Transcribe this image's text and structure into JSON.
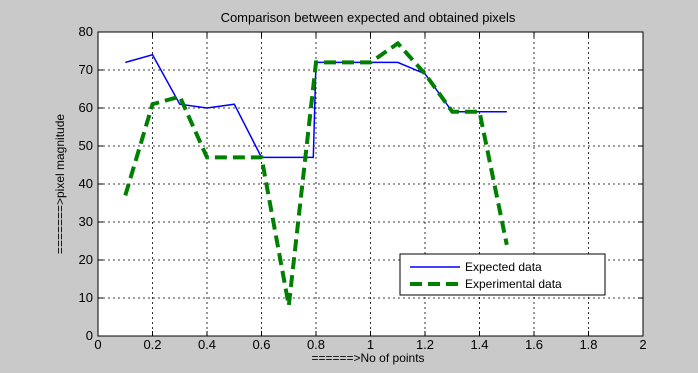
{
  "chart_data": {
    "type": "line",
    "title": "Comparison between expected and obtained pixels",
    "xlabel": "======>No of points",
    "ylabel": "=======>pixel magnitude",
    "xlim": [
      0,
      2
    ],
    "ylim": [
      0,
      80
    ],
    "x_ticks": [
      "0",
      "0.2",
      "0.4",
      "0.6",
      "0.8",
      "1",
      "1.2",
      "1.4",
      "1.6",
      "1.8",
      "2"
    ],
    "y_ticks": [
      "0",
      "10",
      "20",
      "30",
      "40",
      "50",
      "60",
      "70",
      "80"
    ],
    "grid": true,
    "legend_position": "bottom-right",
    "series": [
      {
        "name": "Expected data",
        "color": "#0000ff",
        "style": "solid",
        "points": [
          [
            0.1,
            72
          ],
          [
            0.2,
            74
          ],
          [
            0.3,
            61
          ],
          [
            0.4,
            60
          ],
          [
            0.5,
            61
          ],
          [
            0.6,
            47
          ],
          [
            0.7,
            47
          ],
          [
            0.79,
            47
          ],
          [
            0.8,
            72
          ],
          [
            0.9,
            72
          ],
          [
            1.0,
            72
          ],
          [
            1.1,
            72
          ],
          [
            1.2,
            69
          ],
          [
            1.3,
            59
          ],
          [
            1.4,
            59
          ],
          [
            1.5,
            59
          ]
        ]
      },
      {
        "name": "Experimental data",
        "color": "#008000",
        "style": "dashed",
        "points": [
          [
            0.1,
            37
          ],
          [
            0.2,
            61
          ],
          [
            0.3,
            63
          ],
          [
            0.4,
            47
          ],
          [
            0.5,
            47
          ],
          [
            0.6,
            47
          ],
          [
            0.7,
            8
          ],
          [
            0.8,
            72
          ],
          [
            0.9,
            72
          ],
          [
            1.0,
            72
          ],
          [
            1.1,
            77
          ],
          [
            1.2,
            69
          ],
          [
            1.3,
            59
          ],
          [
            1.4,
            59
          ],
          [
            1.5,
            24
          ]
        ]
      }
    ]
  }
}
